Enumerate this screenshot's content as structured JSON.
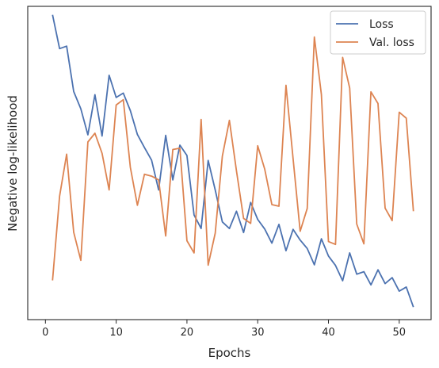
{
  "chart_data": {
    "type": "line",
    "xlabel": "Epochs",
    "ylabel": "Negative log-likelihood",
    "xlim": [
      -2.5,
      54.5
    ],
    "ylim": [
      0,
      1
    ],
    "xticks": [
      0,
      10,
      20,
      30,
      40,
      50
    ],
    "yticks_labeled": false,
    "grid": false,
    "legend_position": "top-right",
    "x": [
      1,
      2,
      3,
      4,
      5,
      6,
      7,
      8,
      9,
      10,
      11,
      12,
      13,
      14,
      15,
      16,
      17,
      18,
      19,
      20,
      21,
      22,
      23,
      24,
      25,
      26,
      27,
      28,
      29,
      30,
      31,
      32,
      33,
      34,
      35,
      36,
      37,
      38,
      39,
      40,
      41,
      42,
      43,
      44,
      45,
      46,
      47,
      48,
      49,
      50,
      51,
      52
    ],
    "series": [
      {
        "name": "Loss",
        "color": "#4c72b0",
        "values": [
          0.973,
          0.865,
          0.873,
          0.728,
          0.673,
          0.59,
          0.718,
          0.586,
          0.78,
          0.709,
          0.723,
          0.667,
          0.591,
          0.549,
          0.509,
          0.414,
          0.588,
          0.446,
          0.557,
          0.524,
          0.334,
          0.291,
          0.508,
          0.414,
          0.312,
          0.291,
          0.346,
          0.278,
          0.374,
          0.32,
          0.289,
          0.244,
          0.304,
          0.22,
          0.288,
          0.254,
          0.227,
          0.175,
          0.258,
          0.203,
          0.173,
          0.124,
          0.213,
          0.145,
          0.153,
          0.111,
          0.159,
          0.115,
          0.134,
          0.091,
          0.104,
          0.04
        ]
      },
      {
        "name": "Val. loss",
        "color": "#dd8452",
        "values": [
          0.125,
          0.394,
          0.528,
          0.279,
          0.189,
          0.567,
          0.595,
          0.531,
          0.414,
          0.685,
          0.702,
          0.486,
          0.365,
          0.464,
          0.458,
          0.446,
          0.267,
          0.543,
          0.547,
          0.252,
          0.213,
          0.639,
          0.174,
          0.276,
          0.522,
          0.636,
          0.475,
          0.323,
          0.307,
          0.555,
          0.48,
          0.367,
          0.362,
          0.748,
          0.513,
          0.282,
          0.355,
          0.902,
          0.718,
          0.249,
          0.24,
          0.837,
          0.739,
          0.305,
          0.242,
          0.727,
          0.69,
          0.356,
          0.316,
          0.662,
          0.643,
          0.346
        ]
      }
    ]
  }
}
